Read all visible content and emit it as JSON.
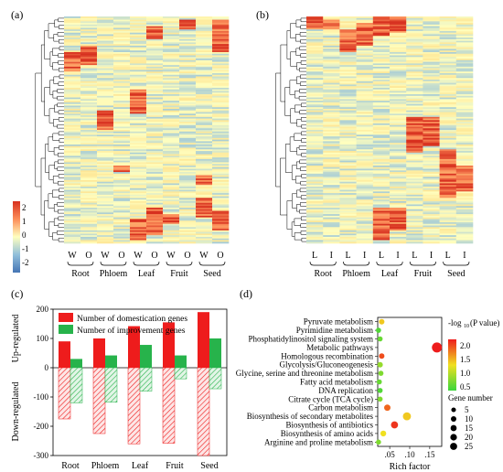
{
  "panels": {
    "a": {
      "label": "(a)",
      "cols": [
        "W",
        "O",
        "W",
        "O",
        "W",
        "O",
        "W",
        "O",
        "W",
        "O"
      ],
      "groups": [
        "Root",
        "Phloem",
        "Leaf",
        "Fruit",
        "Seed"
      ],
      "scale": {
        "ticks": [
          "2",
          "1",
          "0",
          "-1",
          "-2"
        ],
        "colors": [
          "#d7301f",
          "#fc8d59",
          "#fee08b",
          "#ffffbf",
          "#91bfdb",
          "#4575b4"
        ]
      }
    },
    "b": {
      "label": "(b)",
      "cols": [
        "L",
        "I",
        "L",
        "I",
        "L",
        "I",
        "L",
        "I",
        "L",
        "I"
      ],
      "groups": [
        "Root",
        "Phloem",
        "Leaf",
        "Fruit",
        "Seed"
      ]
    },
    "c": {
      "label": "(c)"
    },
    "d": {
      "label": "(d)"
    }
  },
  "chart_data": [
    {
      "type": "heatmap",
      "panel": "a",
      "columns": [
        "W",
        "O",
        "W",
        "O",
        "W",
        "O",
        "W",
        "O",
        "W",
        "O"
      ],
      "column_groups": [
        "Root",
        "Phloem",
        "Leaf",
        "Fruit",
        "Seed"
      ],
      "color_scale": {
        "min": -2,
        "max": 2
      }
    },
    {
      "type": "heatmap",
      "panel": "b",
      "columns": [
        "L",
        "I",
        "L",
        "I",
        "L",
        "I",
        "L",
        "I",
        "L",
        "I"
      ],
      "column_groups": [
        "Root",
        "Phloem",
        "Leaf",
        "Fruit",
        "Seed"
      ]
    },
    {
      "type": "bar",
      "panel": "c",
      "categories": [
        "Root",
        "Phloem",
        "Leaf",
        "Fruit",
        "Seed"
      ],
      "ylim": [
        -300,
        200
      ],
      "yticks": [
        -300,
        -200,
        -100,
        0,
        100,
        200
      ],
      "ylabel_top": "Up-regulated",
      "ylabel_bottom": "Down-regulated",
      "legend": "top-left",
      "series": [
        {
          "name": "Number of domestication genes",
          "color": "#ee1c1c",
          "up": [
            90,
            100,
            142,
            155,
            190
          ],
          "down": [
            -175,
            -225,
            -260,
            -258,
            -300
          ]
        },
        {
          "name": "Number of improvement genes",
          "color": "#27b34b",
          "up": [
            30,
            42,
            78,
            42,
            100
          ],
          "down": [
            -120,
            -118,
            -80,
            -38,
            -72
          ]
        }
      ]
    },
    {
      "type": "scatter",
      "panel": "d",
      "xlabel": "Rich factor",
      "xticks": [
        0.05,
        0.1,
        0.15
      ],
      "xlim": [
        0.02,
        0.18
      ],
      "color_legend": {
        "title": "-log10(P value)",
        "ticks": [
          "2.0",
          "1.5",
          "1.0",
          "0.5"
        ],
        "min": 0.5,
        "max": 2.1
      },
      "size_legend": {
        "title": "Gene number",
        "values": [
          5,
          10,
          15,
          20,
          25
        ]
      },
      "points": [
        {
          "term": "Pyruvate metabolism",
          "x": 0.03,
          "p": 1.4,
          "size": 4
        },
        {
          "term": "Pyrimidine metabolism",
          "x": 0.022,
          "p": 0.6,
          "size": 3
        },
        {
          "term": "Phosphatidylinositol signaling system",
          "x": 0.026,
          "p": 0.7,
          "size": 3
        },
        {
          "term": "Metabolic pathways",
          "x": 0.168,
          "p": 2.1,
          "size": 28
        },
        {
          "term": "Homologous recombination",
          "x": 0.03,
          "p": 1.9,
          "size": 4
        },
        {
          "term": "Glycolysis/Gluconeogenesis",
          "x": 0.026,
          "p": 0.9,
          "size": 4
        },
        {
          "term": "Glycine, serine and threonine metabolism",
          "x": 0.028,
          "p": 0.8,
          "size": 3
        },
        {
          "term": "Fatty acid metabolism",
          "x": 0.024,
          "p": 0.7,
          "size": 3
        },
        {
          "term": "DNA replication",
          "x": 0.026,
          "p": 0.6,
          "size": 3
        },
        {
          "term": "Citrate cycle (TCA cycle)",
          "x": 0.026,
          "p": 0.8,
          "size": 3
        },
        {
          "term": "Carbon metabolism",
          "x": 0.044,
          "p": 1.8,
          "size": 7
        },
        {
          "term": "Biosynthesis of secondary metabolites",
          "x": 0.093,
          "p": 1.4,
          "size": 15
        },
        {
          "term": "Biosynthesis of antibiotics",
          "x": 0.062,
          "p": 2.0,
          "size": 10
        },
        {
          "term": "Biosynthesis of amino acids",
          "x": 0.034,
          "p": 1.3,
          "size": 5
        },
        {
          "term": "Arginine and proline metabolism",
          "x": 0.022,
          "p": 0.8,
          "size": 3
        }
      ]
    }
  ]
}
